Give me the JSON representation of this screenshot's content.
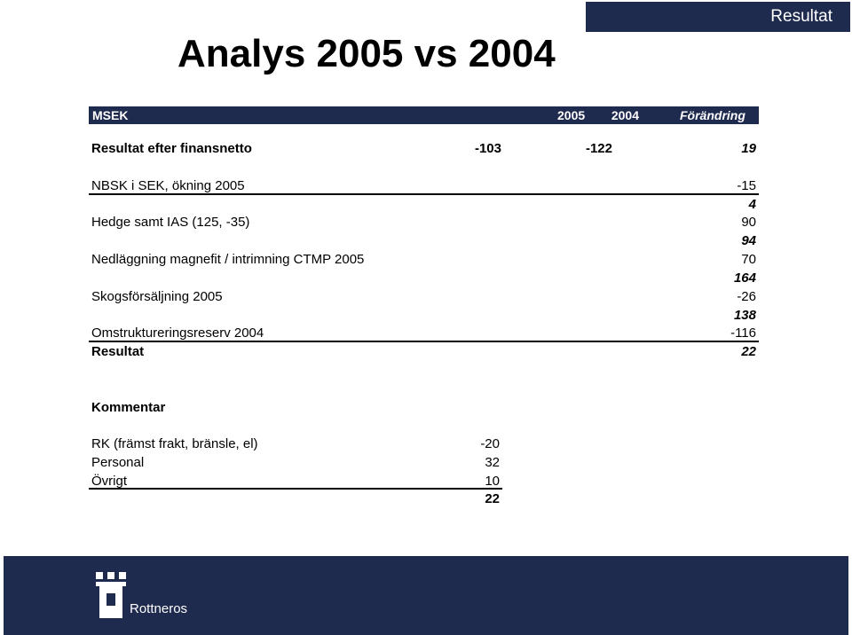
{
  "section_tag": "Resultat",
  "title": "Analys 2005 vs 2004",
  "table": {
    "headers": {
      "label": "MSEK",
      "y2005": "2005",
      "y2004": "2004",
      "change": "Förändring"
    },
    "main_row": {
      "label": "Resultat efter finansnetto",
      "v2005": "-103",
      "v2004": "-122",
      "change": "19"
    },
    "items": [
      {
        "label": "NBSK i SEK, ökning 2005",
        "value": "-15",
        "cumulative": "4"
      },
      {
        "label": "Hedge samt IAS (125, -35)",
        "value": "90",
        "cumulative": "94"
      },
      {
        "label": "Nedläggning magnefit / intrimning CTMP 2005",
        "value": "70",
        "cumulative": "164"
      },
      {
        "label": "Skogsförsäljning 2005",
        "value": "-26",
        "cumulative": "138"
      },
      {
        "label": "Omstruktureringsreserv 2004",
        "value": "-116"
      }
    ],
    "total": {
      "label": "Resultat",
      "value": "22"
    }
  },
  "comment": {
    "heading": "Kommentar",
    "rows": [
      {
        "label": "RK (främst frakt, bränsle, el)",
        "value": "-20"
      },
      {
        "label": "Personal",
        "value": "32"
      },
      {
        "label": "Övrigt",
        "value": "10"
      }
    ],
    "total": "22"
  },
  "footer": {
    "logo_text": "Rottneros"
  },
  "colors": {
    "navy": "#1f2a4f",
    "white": "#ffffff"
  }
}
